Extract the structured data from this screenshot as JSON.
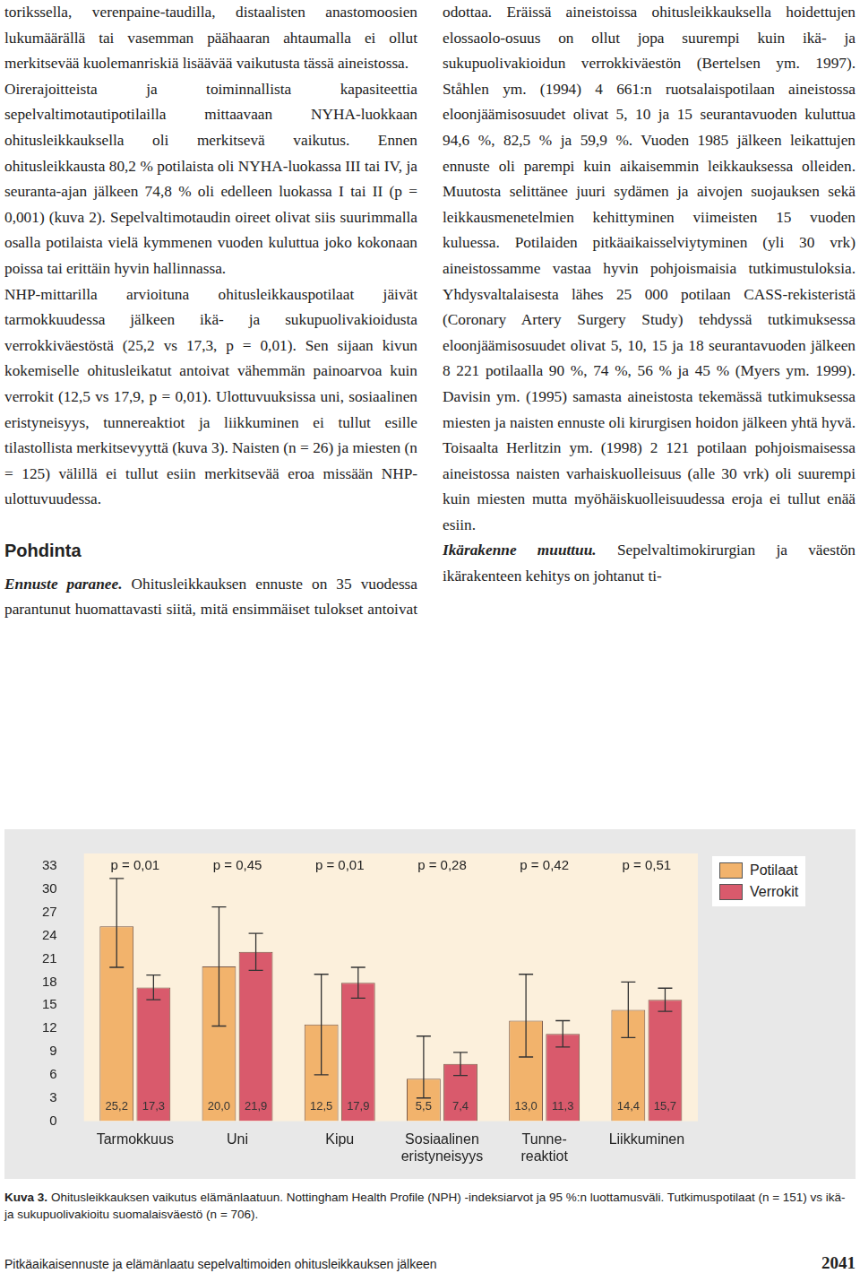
{
  "text_columns": [
    {
      "kind": "p",
      "text": "torikssella, verenpaine-taudilla, distaalisten anastomoosien lukumäärällä tai vasemman päähaaran ahtaumalla ei ollut merkitsevää kuolemanriskiä lisäävää vaikutusta tässä aineistossa."
    },
    {
      "kind": "p",
      "text": "Oirerajoitteista ja toiminnallista kapasiteettia sepelvaltimotautipotilailla mittaavaan NYHA-luokkaan ohitusleikkauksella oli merkitsevä vaikutus. Ennen ohitusleikkausta 80,2 % potilaista oli NYHA-luokassa III tai IV, ja seuranta-ajan jälkeen 74,8 % oli edelleen luokassa I tai II (p = 0,001) (kuva 2). Sepelvaltimotaudin oireet olivat siis suurimmalla osalla potilaista vielä kymmenen vuoden kuluttua joko kokonaan poissa tai erittäin hyvin hallinnassa."
    },
    {
      "kind": "p",
      "text": "NHP-mittarilla arvioituna ohitusleikkauspotilaat jäivät tarmokkuudessa jälkeen ikä- ja sukupuolivakioidusta verrokkiväestöstä (25,2 vs 17,3, p = 0,01). Sen sijaan kivun kokemiselle ohitusleikatut antoivat vähemmän painoarvoa kuin verrokit (12,5 vs 17,9, p = 0,01). Ulottuvuuksissa uni, sosiaalinen eristyneisyys, tunnereaktiot ja liikkuminen ei tullut esille tilastollista merkitsevyyttä (kuva 3). Naisten (n = 26) ja miesten (n = 125) välillä ei tullut esiin merkitsevää eroa missään NHP-ulottuvuudessa."
    },
    {
      "kind": "heading",
      "text": "Pohdinta"
    },
    {
      "kind": "p",
      "lead": "Ennuste paranee.",
      "text": "Ohitusleikkauksen ennuste on 35 vuodessa parantunut huomattavasti siitä, mitä ensimmäiset tulokset antoivat odottaa. Eräissä aineistoissa ohitusleikkauksella hoidettujen elossaolo-osuus on ollut jopa suurempi kuin ikä- ja sukupuolivakioidun verrokkiväestön (Bertelsen ym. 1997). Ståhlen ym. (1994) 4 661:n ruotsalaispotilaan aineistossa eloonjäämisosuudet olivat 5, 10 ja 15 seurantavuoden kuluttua 94,6 %, 82,5 % ja 59,9 %. Vuoden 1985 jälkeen leikattujen ennuste oli parempi kuin aikaisemmin leikkauksessa olleiden. Muutosta selittänee juuri sydämen ja aivojen suojauksen sekä leikkausmenetelmien kehittyminen viimeisten 15 vuoden kuluessa. Potilaiden pitkäaikaisselviytyminen (yli 30 vrk) aineistossamme vastaa hyvin pohjoismaisia tutkimustuloksia. Yhdysvaltalaisesta lähes 25 000 potilaan CASS-rekisteristä (Coronary Artery Surgery Study) tehdyssä tutkimuksessa eloonjäämisosuudet olivat 5, 10, 15 ja 18 seurantavuoden jälkeen 8 221 potilaalla 90 %, 74 %, 56 % ja 45 % (Myers ym. 1999). Davisin ym. (1995) samasta aineistosta tekemässä tutkimuksessa miesten ja naisten ennuste oli kirurgisen hoidon jälkeen yhtä hyvä. Toisaalta Herlitzin ym. (1998) 2 121 potilaan pohjoismaisessa aineistossa naisten varhaiskuolleisuus (alle 30 vrk) oli suurempi kuin miesten mutta myöhäiskuolleisuudessa eroja ei tullut enää esiin."
    },
    {
      "kind": "p",
      "lead": "Ikärakenne muuttuu.",
      "text": "Sepelvaltimokirurgian ja väestön ikärakenteen kehitys on johtanut ti-"
    }
  ],
  "chart_data": {
    "type": "bar",
    "categories": [
      "Tarmokkuus",
      "Uni",
      "Kipu",
      [
        "Sosiaalinen",
        "eristyneisyys"
      ],
      [
        "Tunne-",
        "reaktiot"
      ],
      "Liikkuminen"
    ],
    "series": [
      {
        "name": "Potilaat",
        "color": "#f2b36c",
        "values": [
          25.2,
          20.0,
          12.5,
          5.5,
          13.0,
          14.4
        ],
        "value_labels": [
          "25,2",
          "20,0",
          "12,5",
          "5,5",
          "13,0",
          "14,4"
        ],
        "ci": [
          [
            19.9,
            31.4
          ],
          [
            12.3,
            27.7
          ],
          [
            6.0,
            19.0
          ],
          [
            3.0,
            11.0
          ],
          [
            8.3,
            19.0
          ],
          [
            10.8,
            18.0
          ]
        ]
      },
      {
        "name": "Verrokit",
        "color": "#d95a6c",
        "values": [
          17.3,
          21.9,
          17.9,
          7.4,
          11.3,
          15.7
        ],
        "value_labels": [
          "17,3",
          "21,9",
          "17,9",
          "7,4",
          "11,3",
          "15,7"
        ],
        "ci": [
          [
            15.7,
            18.9
          ],
          [
            19.5,
            24.3
          ],
          [
            15.9,
            19.9
          ],
          [
            5.9,
            8.9
          ],
          [
            9.6,
            13.0
          ],
          [
            14.2,
            17.2
          ]
        ]
      }
    ],
    "annotations": [
      "p = 0,01",
      "p = 0,45",
      "p = 0,01",
      "p = 0,28",
      "p = 0,42",
      "p = 0,51"
    ],
    "ylim": [
      0,
      33
    ],
    "yticks": [
      0,
      3,
      6,
      9,
      12,
      15,
      18,
      21,
      24,
      27,
      30,
      33
    ],
    "grid": false,
    "legend": "right",
    "data_labels": true
  },
  "figure": {
    "label": "Kuva 3.",
    "caption": "Ohitusleikkauksen vaikutus elämänlaatuun. Nottingham Health Profile (NPH) -indeksiarvot ja 95 %:n luottamusväli. Tutkimuspotilaat (n = 151) vs ikä- ja sukupuolivakioitu suomalaisväestö (n = 706)."
  },
  "footer": {
    "title": "Pitkäaikaisennuste ja elämänlaatu sepelvaltimoiden ohitusleikkauksen jälkeen",
    "page": "2041"
  }
}
